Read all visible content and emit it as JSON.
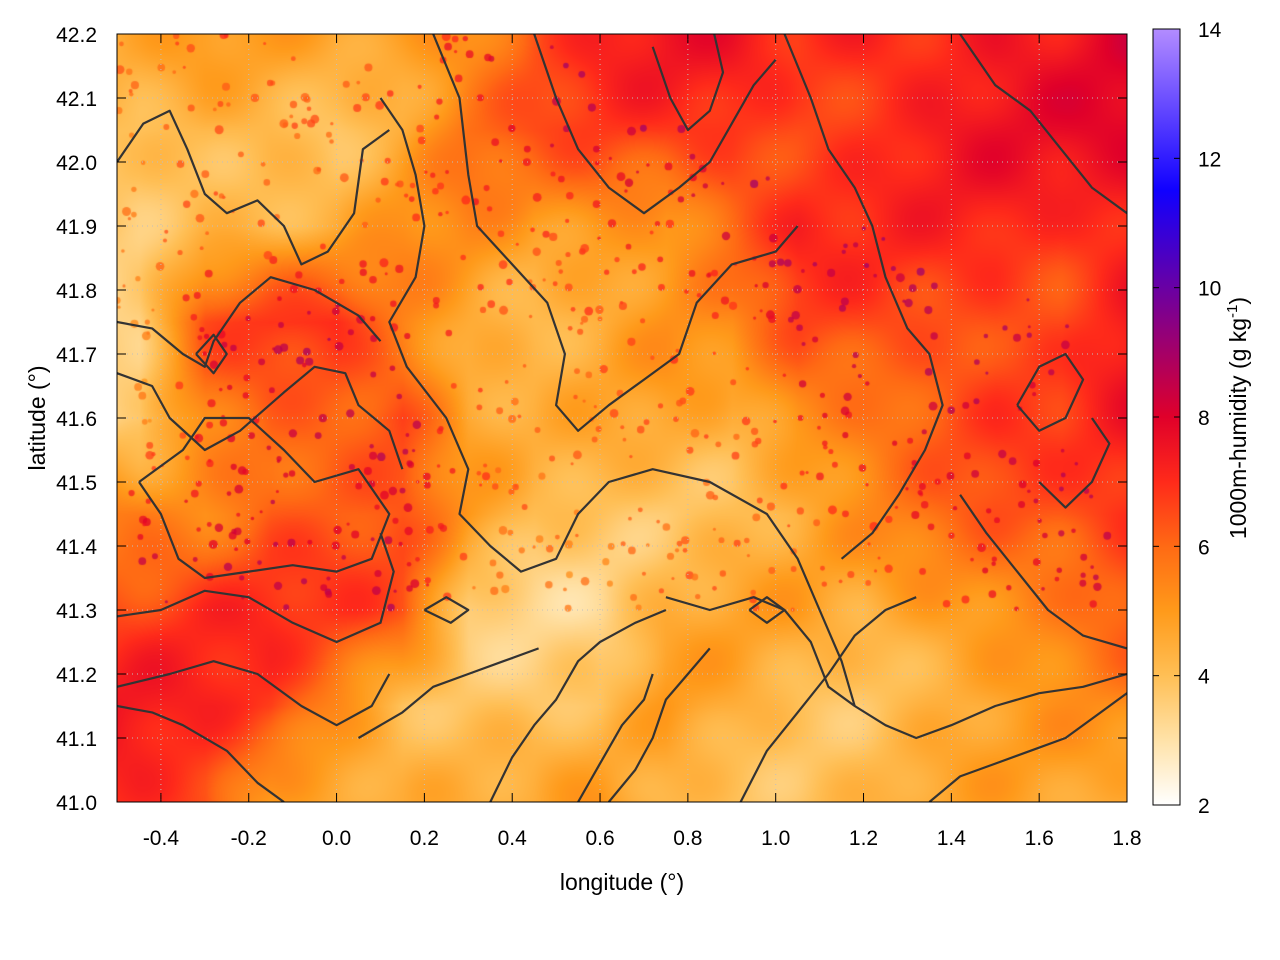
{
  "chart_data": {
    "type": "heatmap",
    "title": "",
    "xlabel": "longitude (°)",
    "ylabel": "latitude (°)",
    "colorbar_label": "1000m-humidity (g kg",
    "colorbar_label_exp": "-1",
    "colorbar_label_close": ")",
    "xlim": [
      -0.5,
      1.8
    ],
    "ylim": [
      41.0,
      42.2
    ],
    "clim": [
      2,
      14
    ],
    "x_ticks": [
      "-0.4",
      "-0.2",
      "0.0",
      "0.2",
      "0.4",
      "0.6",
      "0.8",
      "1.0",
      "1.2",
      "1.4",
      "1.6",
      "1.8"
    ],
    "x_tick_values": [
      -0.4,
      -0.2,
      0.0,
      0.2,
      0.4,
      0.6,
      0.8,
      1.0,
      1.2,
      1.4,
      1.6,
      1.8
    ],
    "y_ticks": [
      "41.0",
      "41.1",
      "41.2",
      "41.3",
      "41.4",
      "41.5",
      "41.6",
      "41.7",
      "41.8",
      "41.9",
      "42.0",
      "42.1",
      "42.2"
    ],
    "y_tick_values": [
      41.0,
      41.1,
      41.2,
      41.3,
      41.4,
      41.5,
      41.6,
      41.7,
      41.8,
      41.9,
      42.0,
      42.1,
      42.2
    ],
    "colorbar_ticks": [
      "2",
      "4",
      "6",
      "8",
      "10",
      "12",
      "14"
    ],
    "colorbar_tick_values": [
      2,
      4,
      6,
      8,
      10,
      12,
      14
    ],
    "colormap": [
      "#ffffff",
      "#ffe2a8",
      "#ffbf55",
      "#ff9a1a",
      "#ff6a14",
      "#ff2a1a",
      "#e0002a",
      "#1000ff",
      "#b38cff"
    ],
    "colormap_stops": [
      2,
      3,
      4,
      5,
      6,
      7,
      8,
      11.5,
      14
    ],
    "grid": true,
    "grid_color": "#bfbfbf",
    "contour_color": "#333333",
    "humidity_field": {
      "columns": [
        -0.45,
        -0.3,
        -0.15,
        0.0,
        0.15,
        0.3,
        0.45,
        0.6,
        0.75,
        0.9,
        1.05,
        1.2,
        1.35,
        1.5,
        1.65,
        1.8
      ],
      "rows": [
        42.2,
        42.05,
        41.9,
        41.75,
        41.6,
        41.45,
        41.3,
        41.15,
        41.0
      ],
      "values": [
        [
          4.5,
          4.8,
          4.6,
          4.6,
          5.0,
          5.5,
          6.6,
          7.2,
          7.4,
          7.2,
          6.8,
          7.2,
          7.3,
          7.6,
          7.5,
          7.8
        ],
        [
          3.7,
          4.2,
          4.4,
          4.1,
          4.6,
          5.8,
          6.2,
          6.5,
          6.7,
          7.0,
          6.8,
          7.0,
          7.3,
          7.4,
          7.5,
          7.7
        ],
        [
          4.0,
          4.4,
          4.3,
          4.2,
          5.0,
          5.2,
          4.8,
          5.4,
          5.2,
          6.3,
          7.0,
          6.8,
          6.9,
          7.1,
          7.0,
          7.5
        ],
        [
          3.5,
          6.2,
          6.6,
          6.8,
          5.6,
          4.8,
          4.4,
          4.5,
          5.0,
          5.0,
          6.4,
          6.6,
          6.6,
          6.8,
          6.6,
          7.3
        ],
        [
          3.2,
          5.4,
          6.2,
          6.4,
          6.8,
          4.6,
          4.2,
          4.4,
          4.6,
          4.4,
          5.6,
          5.9,
          6.3,
          6.6,
          6.5,
          7.2
        ],
        [
          5.8,
          5.6,
          6.3,
          6.1,
          6.0,
          4.8,
          4.0,
          4.1,
          4.0,
          4.2,
          4.4,
          5.0,
          5.6,
          6.2,
          6.5,
          7.1
        ],
        [
          6.6,
          6.8,
          6.8,
          6.6,
          6.5,
          3.8,
          3.5,
          3.4,
          4.3,
          4.5,
          4.6,
          4.3,
          5.0,
          5.5,
          5.8,
          6.3
        ],
        [
          7.2,
          7.0,
          6.9,
          5.6,
          4.2,
          3.9,
          3.6,
          3.6,
          4.8,
          4.6,
          4.1,
          4.1,
          4.4,
          4.6,
          4.8,
          5.1
        ],
        [
          7.1,
          6.9,
          5.0,
          4.6,
          4.2,
          4.2,
          4.4,
          5.2,
          4.6,
          4.1,
          4.0,
          4.0,
          4.4,
          4.6,
          4.7,
          4.6
        ]
      ]
    },
    "contours": [
      [
        [
          -0.5,
          41.15
        ],
        [
          -0.42,
          41.14
        ],
        [
          -0.35,
          41.12
        ],
        [
          -0.25,
          41.08
        ],
        [
          -0.18,
          41.03
        ],
        [
          -0.12,
          41.0
        ]
      ],
      [
        [
          -0.5,
          41.18
        ],
        [
          -0.38,
          41.2
        ],
        [
          -0.28,
          41.22
        ],
        [
          -0.18,
          41.2
        ],
        [
          -0.08,
          41.15
        ],
        [
          0.0,
          41.12
        ],
        [
          0.08,
          41.15
        ],
        [
          0.12,
          41.2
        ]
      ],
      [
        [
          -0.5,
          41.29
        ],
        [
          -0.4,
          41.3
        ],
        [
          -0.3,
          41.33
        ],
        [
          -0.2,
          41.32
        ],
        [
          -0.1,
          41.28
        ],
        [
          0.0,
          41.25
        ],
        [
          0.1,
          41.28
        ],
        [
          0.13,
          41.36
        ],
        [
          0.1,
          41.42
        ]
      ],
      [
        [
          -0.45,
          41.5
        ],
        [
          -0.4,
          41.45
        ],
        [
          -0.36,
          41.38
        ],
        [
          -0.3,
          41.35
        ],
        [
          -0.2,
          41.36
        ],
        [
          -0.1,
          41.37
        ],
        [
          0.0,
          41.36
        ],
        [
          0.08,
          41.38
        ],
        [
          0.12,
          41.45
        ],
        [
          0.05,
          41.52
        ],
        [
          -0.05,
          41.5
        ],
        [
          -0.12,
          41.55
        ],
        [
          -0.2,
          41.6
        ],
        [
          -0.3,
          41.6
        ],
        [
          -0.35,
          41.55
        ],
        [
          -0.45,
          41.5
        ]
      ],
      [
        [
          -0.5,
          41.67
        ],
        [
          -0.42,
          41.65
        ],
        [
          -0.38,
          41.6
        ],
        [
          -0.3,
          41.55
        ],
        [
          -0.22,
          41.58
        ],
        [
          -0.12,
          41.64
        ],
        [
          -0.05,
          41.68
        ],
        [
          0.02,
          41.67
        ],
        [
          0.05,
          41.62
        ],
        [
          0.12,
          41.58
        ],
        [
          0.15,
          41.52
        ]
      ],
      [
        [
          -0.5,
          41.75
        ],
        [
          -0.42,
          41.74
        ],
        [
          -0.35,
          41.7
        ],
        [
          -0.3,
          41.68
        ],
        [
          -0.28,
          41.72
        ],
        [
          -0.22,
          41.78
        ],
        [
          -0.15,
          41.82
        ],
        [
          -0.05,
          41.8
        ],
        [
          0.05,
          41.76
        ],
        [
          0.1,
          41.72
        ]
      ],
      [
        [
          -0.5,
          42.0
        ],
        [
          -0.44,
          42.06
        ],
        [
          -0.38,
          42.08
        ],
        [
          -0.34,
          42.02
        ],
        [
          -0.3,
          41.95
        ],
        [
          -0.25,
          41.92
        ],
        [
          -0.18,
          41.94
        ],
        [
          -0.12,
          41.9
        ],
        [
          -0.08,
          41.84
        ],
        [
          -0.02,
          41.86
        ],
        [
          0.04,
          41.92
        ],
        [
          0.06,
          42.02
        ],
        [
          0.12,
          42.05
        ]
      ],
      [
        [
          0.1,
          42.1
        ],
        [
          0.15,
          42.05
        ],
        [
          0.18,
          41.98
        ],
        [
          0.2,
          41.9
        ],
        [
          0.18,
          41.82
        ],
        [
          0.12,
          41.75
        ],
        [
          0.16,
          41.68
        ],
        [
          0.25,
          41.6
        ],
        [
          0.3,
          41.52
        ],
        [
          0.28,
          41.45
        ],
        [
          0.35,
          41.4
        ],
        [
          0.42,
          41.36
        ],
        [
          0.5,
          41.38
        ],
        [
          0.55,
          41.45
        ],
        [
          0.62,
          41.5
        ],
        [
          0.72,
          41.52
        ],
        [
          0.85,
          41.5
        ],
        [
          0.98,
          41.45
        ],
        [
          1.05,
          41.38
        ],
        [
          1.1,
          41.3
        ],
        [
          1.15,
          41.22
        ],
        [
          1.18,
          41.15
        ]
      ],
      [
        [
          0.22,
          42.2
        ],
        [
          0.28,
          42.1
        ],
        [
          0.3,
          41.98
        ],
        [
          0.32,
          41.9
        ],
        [
          0.4,
          41.84
        ],
        [
          0.48,
          41.78
        ],
        [
          0.52,
          41.7
        ],
        [
          0.5,
          41.62
        ],
        [
          0.55,
          41.58
        ],
        [
          0.62,
          41.62
        ],
        [
          0.7,
          41.66
        ],
        [
          0.78,
          41.7
        ],
        [
          0.82,
          41.78
        ],
        [
          0.9,
          41.84
        ],
        [
          1.0,
          41.86
        ],
        [
          1.05,
          41.9
        ]
      ],
      [
        [
          0.45,
          42.2
        ],
        [
          0.5,
          42.1
        ],
        [
          0.55,
          42.02
        ],
        [
          0.62,
          41.96
        ],
        [
          0.7,
          41.92
        ],
        [
          0.78,
          41.96
        ],
        [
          0.85,
          42.0
        ],
        [
          0.9,
          42.06
        ],
        [
          0.95,
          42.12
        ],
        [
          1.0,
          42.16
        ]
      ],
      [
        [
          0.72,
          42.18
        ],
        [
          0.76,
          42.1
        ],
        [
          0.8,
          42.05
        ],
        [
          0.85,
          42.08
        ],
        [
          0.88,
          42.14
        ],
        [
          0.86,
          42.2
        ]
      ],
      [
        [
          1.02,
          42.2
        ],
        [
          1.08,
          42.1
        ],
        [
          1.12,
          42.02
        ],
        [
          1.18,
          41.96
        ],
        [
          1.22,
          41.9
        ],
        [
          1.25,
          41.82
        ],
        [
          1.3,
          41.74
        ],
        [
          1.35,
          41.7
        ],
        [
          1.38,
          41.62
        ],
        [
          1.34,
          41.55
        ],
        [
          1.28,
          41.48
        ],
        [
          1.22,
          41.42
        ],
        [
          1.15,
          41.38
        ]
      ],
      [
        [
          1.42,
          42.2
        ],
        [
          1.5,
          42.12
        ],
        [
          1.58,
          42.08
        ],
        [
          1.65,
          42.02
        ],
        [
          1.72,
          41.96
        ],
        [
          1.8,
          41.92
        ]
      ],
      [
        [
          1.42,
          41.48
        ],
        [
          1.48,
          41.42
        ],
        [
          1.55,
          41.36
        ],
        [
          1.62,
          41.3
        ],
        [
          1.7,
          41.26
        ],
        [
          1.8,
          41.24
        ]
      ],
      [
        [
          0.75,
          41.32
        ],
        [
          0.85,
          41.3
        ],
        [
          0.95,
          41.32
        ],
        [
          1.02,
          41.3
        ],
        [
          1.08,
          41.25
        ],
        [
          1.12,
          41.18
        ],
        [
          1.18,
          41.15
        ],
        [
          1.25,
          41.12
        ],
        [
          1.32,
          41.1
        ],
        [
          1.4,
          41.12
        ],
        [
          1.5,
          41.15
        ],
        [
          1.6,
          41.17
        ],
        [
          1.7,
          41.18
        ],
        [
          1.8,
          41.2
        ]
      ],
      [
        [
          0.92,
          41.0
        ],
        [
          0.98,
          41.08
        ],
        [
          1.05,
          41.14
        ],
        [
          1.12,
          41.2
        ],
        [
          1.18,
          41.26
        ],
        [
          1.25,
          41.3
        ],
        [
          1.32,
          41.32
        ]
      ],
      [
        [
          1.35,
          41.0
        ],
        [
          1.42,
          41.04
        ],
        [
          1.5,
          41.06
        ],
        [
          1.58,
          41.08
        ],
        [
          1.66,
          41.1
        ],
        [
          1.74,
          41.14
        ],
        [
          1.8,
          41.17
        ]
      ],
      [
        [
          0.35,
          41.0
        ],
        [
          0.4,
          41.07
        ],
        [
          0.45,
          41.12
        ],
        [
          0.5,
          41.16
        ],
        [
          0.55,
          41.22
        ],
        [
          0.6,
          41.25
        ],
        [
          0.68,
          41.28
        ],
        [
          0.75,
          41.3
        ]
      ],
      [
        [
          0.55,
          41.0
        ],
        [
          0.6,
          41.06
        ],
        [
          0.65,
          41.12
        ],
        [
          0.7,
          41.16
        ],
        [
          0.72,
          41.2
        ]
      ],
      [
        [
          0.62,
          41.0
        ],
        [
          0.68,
          41.05
        ],
        [
          0.72,
          41.1
        ],
        [
          0.75,
          41.16
        ],
        [
          0.8,
          41.2
        ],
        [
          0.85,
          41.24
        ]
      ],
      [
        [
          0.05,
          41.1
        ],
        [
          0.15,
          41.14
        ],
        [
          0.22,
          41.18
        ],
        [
          0.3,
          41.2
        ],
        [
          0.38,
          41.22
        ],
        [
          0.46,
          41.24
        ]
      ],
      [
        [
          0.2,
          41.3
        ],
        [
          0.25,
          41.32
        ],
        [
          0.3,
          41.3
        ],
        [
          0.26,
          41.28
        ],
        [
          0.2,
          41.3
        ]
      ],
      [
        [
          1.55,
          41.62
        ],
        [
          1.6,
          41.58
        ],
        [
          1.66,
          41.6
        ],
        [
          1.7,
          41.66
        ],
        [
          1.66,
          41.7
        ],
        [
          1.6,
          41.68
        ],
        [
          1.55,
          41.62
        ]
      ],
      [
        [
          1.6,
          41.5
        ],
        [
          1.66,
          41.46
        ],
        [
          1.72,
          41.5
        ],
        [
          1.76,
          41.56
        ],
        [
          1.72,
          41.6
        ]
      ],
      [
        [
          -0.32,
          41.7
        ],
        [
          -0.28,
          41.67
        ],
        [
          -0.25,
          41.7
        ],
        [
          -0.28,
          41.73
        ],
        [
          -0.32,
          41.7
        ]
      ],
      [
        [
          0.94,
          41.3
        ],
        [
          0.98,
          41.32
        ],
        [
          1.02,
          41.3
        ],
        [
          0.98,
          41.28
        ],
        [
          0.94,
          41.3
        ]
      ]
    ]
  }
}
